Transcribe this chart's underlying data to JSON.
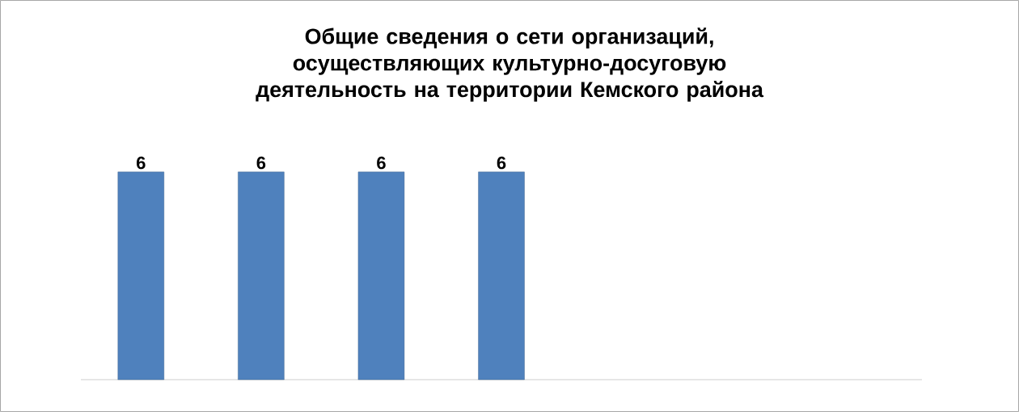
{
  "chart_data": {
    "type": "bar",
    "title": "Общие сведения о сети организаций, осуществляющих культурно-досуговую деятельность на территории Кемского района",
    "categories": [
      null,
      null,
      null,
      null
    ],
    "values": [
      6,
      6,
      6,
      6
    ],
    "color": "#4f81bd",
    "data_labels": true
  }
}
